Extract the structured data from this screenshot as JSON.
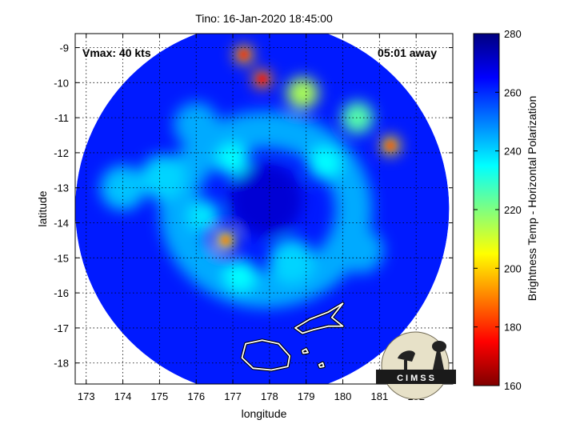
{
  "chart_data": {
    "type": "heatmap",
    "title": "Tino: 16-Jan-2020 18:45:00",
    "xlabel": "longitude",
    "ylabel": "latitude",
    "xlim": [
      172.7,
      183.0
    ],
    "ylim": [
      -18.6,
      -8.6
    ],
    "xticks": [
      173,
      174,
      175,
      176,
      177,
      178,
      179,
      180,
      181,
      182
    ],
    "xtick_labels": [
      "173",
      "174",
      "175",
      "176",
      "177",
      "178",
      "179",
      "180",
      "181",
      "182"
    ],
    "yticks": [
      -9,
      -10,
      -11,
      -12,
      -13,
      -14,
      -15,
      -16,
      -17,
      -18
    ],
    "ytick_labels": [
      "-9",
      "-10",
      "-11",
      "-12",
      "-13",
      "-14",
      "-15",
      "-16",
      "-17",
      "-18"
    ],
    "grid": true,
    "annotations": {
      "vmax": "Vmax: 40 kts",
      "time_away": "05:01 away"
    },
    "colorbar": {
      "label": "Brightness Temp - Horizontal Polarization",
      "range": [
        160,
        280
      ],
      "ticks": [
        160,
        180,
        200,
        220,
        240,
        260,
        280
      ],
      "tick_labels": [
        "160",
        "180",
        "200",
        "220",
        "240",
        "260",
        "280"
      ],
      "colormap": "jet"
    },
    "disk": {
      "center_lon": 177.8,
      "center_lat": -13.6,
      "radius_deg": 5.1
    },
    "storm_center": {
      "lon": 177.9,
      "lat": -13.35
    },
    "features": [
      {
        "lon": 177.9,
        "lat": -13.3,
        "value": 268
      },
      {
        "lon": 176.8,
        "lat": -14.5,
        "value": 205
      },
      {
        "lon": 177.2,
        "lat": -15.5,
        "value": 235
      },
      {
        "lon": 178.6,
        "lat": -15.1,
        "value": 240
      },
      {
        "lon": 176.2,
        "lat": -13.8,
        "value": 238
      },
      {
        "lon": 177.8,
        "lat": -9.9,
        "value": 190
      },
      {
        "lon": 177.3,
        "lat": -9.2,
        "value": 195
      },
      {
        "lon": 178.9,
        "lat": -10.3,
        "value": 215
      },
      {
        "lon": 180.4,
        "lat": -11.0,
        "value": 225
      },
      {
        "lon": 181.3,
        "lat": -11.8,
        "value": 200
      },
      {
        "lon": 179.5,
        "lat": -12.3,
        "value": 235
      },
      {
        "lon": 177.0,
        "lat": -12.2,
        "value": 235
      },
      {
        "lon": 175.1,
        "lat": -12.7,
        "value": 240
      },
      {
        "lon": 174.0,
        "lat": -13.0,
        "value": 242
      },
      {
        "lon": 180.5,
        "lat": -14.8,
        "value": 245
      },
      {
        "lon": 176.0,
        "lat": -11.2,
        "value": 245
      }
    ],
    "coastlines": [
      {
        "name": "island-east",
        "points": [
          [
            178.7,
            -17.0
          ],
          [
            179.1,
            -16.75
          ],
          [
            179.6,
            -16.55
          ],
          [
            180.0,
            -16.3
          ],
          [
            179.7,
            -16.7
          ],
          [
            180.0,
            -16.95
          ],
          [
            179.6,
            -16.95
          ],
          [
            179.2,
            -17.05
          ],
          [
            178.9,
            -17.15
          ],
          [
            178.7,
            -17.0
          ]
        ]
      },
      {
        "name": "island-west",
        "points": [
          [
            177.35,
            -17.45
          ],
          [
            177.8,
            -17.35
          ],
          [
            178.25,
            -17.45
          ],
          [
            178.55,
            -17.8
          ],
          [
            178.5,
            -18.1
          ],
          [
            178.05,
            -18.2
          ],
          [
            177.55,
            -18.15
          ],
          [
            177.25,
            -17.85
          ],
          [
            177.35,
            -17.45
          ]
        ]
      },
      {
        "name": "islet-a",
        "points": [
          [
            178.9,
            -17.65
          ],
          [
            179.0,
            -17.6
          ],
          [
            179.05,
            -17.7
          ],
          [
            178.92,
            -17.72
          ],
          [
            178.9,
            -17.65
          ]
        ]
      },
      {
        "name": "islet-b",
        "points": [
          [
            179.35,
            -18.05
          ],
          [
            179.45,
            -18.0
          ],
          [
            179.48,
            -18.1
          ],
          [
            179.38,
            -18.12
          ],
          [
            179.35,
            -18.05
          ]
        ]
      }
    ]
  },
  "logo": {
    "text": "CIMSS"
  }
}
